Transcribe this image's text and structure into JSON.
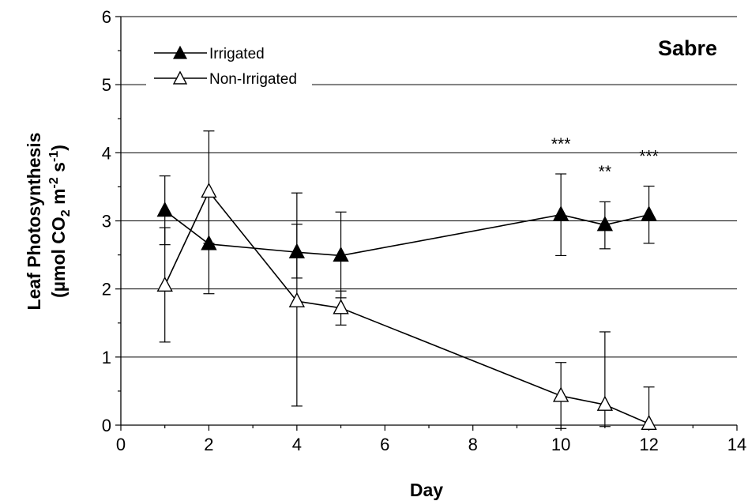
{
  "chart_data": {
    "type": "line",
    "panel_label": "Sabre",
    "xlabel": "Day",
    "ylabel_line1": "Leaf Photosynthesis",
    "ylabel_line2_prefix": "(µmol CO",
    "ylabel_sub2": "2",
    "ylabel_mid": " m",
    "ylabel_sup_m": "-2",
    "ylabel_s": " s",
    "ylabel_sup_s": "-1",
    "ylabel_close": ")",
    "xlim": [
      0,
      14
    ],
    "ylim": [
      0,
      6
    ],
    "x_ticks": [
      "0",
      "2",
      "4",
      "6",
      "8",
      "10",
      "12",
      "14"
    ],
    "y_ticks": [
      "0",
      "1",
      "2",
      "3",
      "4",
      "5",
      "6"
    ],
    "grid": "horizontal",
    "legend_position": "top-left",
    "series": [
      {
        "name": "Irrigated",
        "marker": "filled-triangle",
        "x": [
          1,
          2,
          4,
          5,
          10,
          11,
          12
        ],
        "y": [
          3.15,
          2.66,
          2.54,
          2.49,
          3.09,
          2.94,
          3.09
        ],
        "err_low": [
          2.65,
          1.93,
          2.16,
          1.87,
          2.49,
          2.59,
          2.67
        ],
        "err_high": [
          3.66,
          3.4,
          3.41,
          3.13,
          3.69,
          3.28,
          3.51
        ]
      },
      {
        "name": "Non-Irrigated",
        "marker": "open-triangle",
        "x": [
          1,
          2,
          4,
          5,
          10,
          11,
          12
        ],
        "y": [
          2.05,
          3.43,
          1.82,
          1.72,
          0.43,
          0.3,
          0.02
        ],
        "err_low": [
          1.22,
          2.67,
          0.28,
          1.47,
          -0.05,
          -0.02,
          null
        ],
        "err_high": [
          2.9,
          4.32,
          2.95,
          1.97,
          0.92,
          1.37,
          0.56
        ]
      }
    ],
    "annotations": [
      {
        "x": 10,
        "text": "***"
      },
      {
        "x": 11,
        "text": "**"
      },
      {
        "x": 12,
        "text": "***"
      }
    ]
  }
}
